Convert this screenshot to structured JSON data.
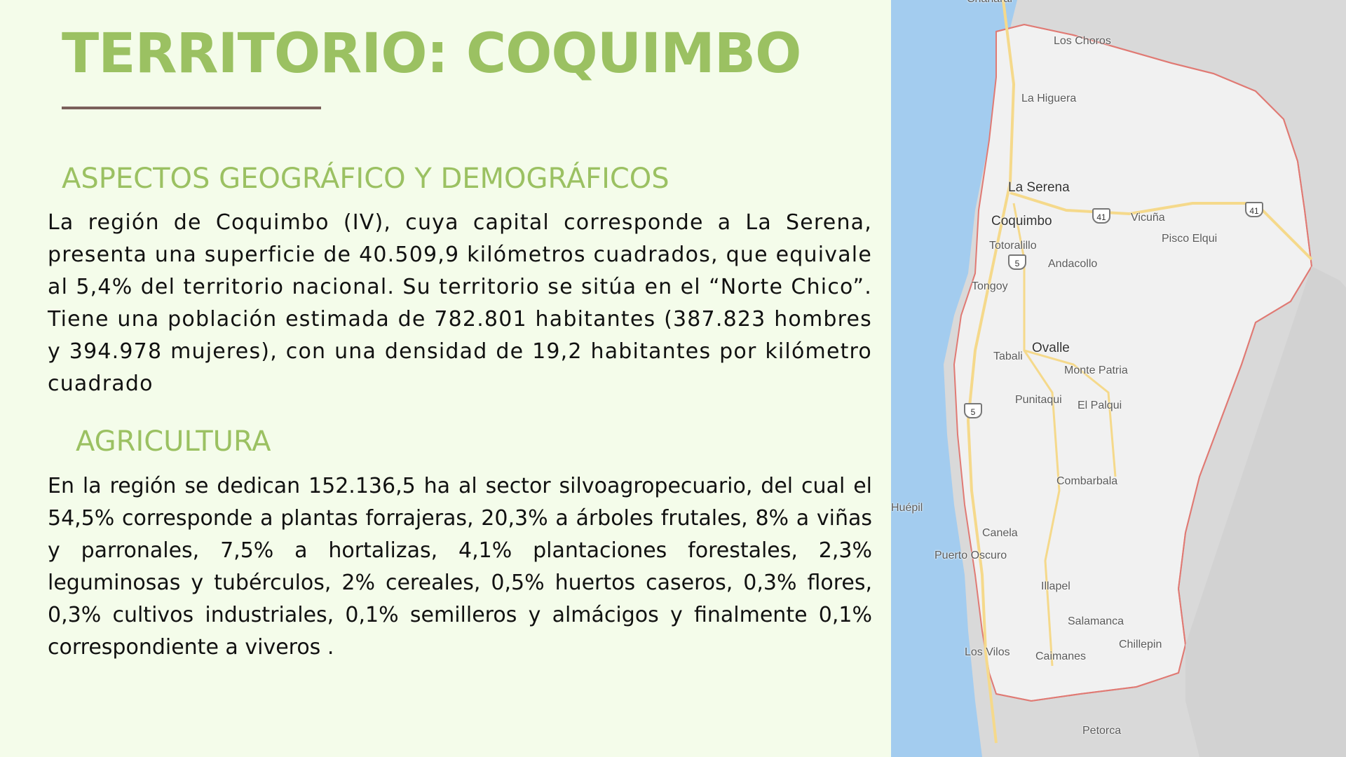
{
  "title": "TERRITORIO: COQUIMBO",
  "sections": {
    "geo": {
      "heading": "ASPECTOS GEOGRÁFICO Y DEMOGRÁFICOS",
      "text": "La región de Coquimbo (IV), cuya capital corresponde a La Serena, presenta una superficie de 40.509,9 kilómetros cuadrados, que equivale al 5,4% del territorio nacional. Su territorio se sitúa en el “Norte Chico”. Tiene una población estimada de 782.801 habitantes (387.823 hombres y 394.978 mujeres), con una densidad de 19,2 habitantes por kilómetro cuadrado"
    },
    "agri": {
      "heading": "AGRICULTURA",
      "text": "En la región se dedican 152.136,5 ha al sector silvoagropecuario, del cual el 54,5% corresponde a plantas forrajeras, 20,3% a árboles frutales, 8% a viñas y parronales, 7,5% a hortalizas, 4,1% plantaciones forestales, 2,3% leguminosas y tubérculos, 2% cereales, 0,5% huertos caseros, 0,3% flores, 0,3% cultivos industriales, 0,1% semilleros y almácigos y finalmente 0,1% correspondiente a viveros ."
    }
  },
  "map": {
    "colors": {
      "sea": "#a3ccef",
      "land": "#f1f1f1",
      "outside": "#d9d9d9",
      "border": "#e07a74",
      "road": "#f5d98b"
    },
    "places": {
      "chanaral": "Chañaral",
      "los_choros": "Los Choros",
      "la_higuera": "La Higuera",
      "la_serena": "La Serena",
      "coquimbo": "Coquimbo",
      "vicuna": "Vicuña",
      "pisco_elqui": "Pisco Elqui",
      "totoralillo": "Totoralillo",
      "andacollo": "Andacollo",
      "tongoy": "Tongoy",
      "ovalle": "Ovalle",
      "tabali": "Tabali",
      "monte_patria": "Monte Patria",
      "punitaqui": "Punitaqui",
      "el_palqui": "El Palqui",
      "combarbala": "Combarbala",
      "huepil": "Huépil",
      "canela": "Canela",
      "puerto_oscuro": "Puerto Oscuro",
      "illapel": "Illapel",
      "salamanca": "Salamanca",
      "chillepin": "Chillepin",
      "los_vilos": "Los Vilos",
      "caimanes": "Caimanes",
      "petorca": "Petorca"
    },
    "route_shields": {
      "r41a": "41",
      "r41b": "41",
      "r5a": "5",
      "r5b": "5"
    }
  }
}
